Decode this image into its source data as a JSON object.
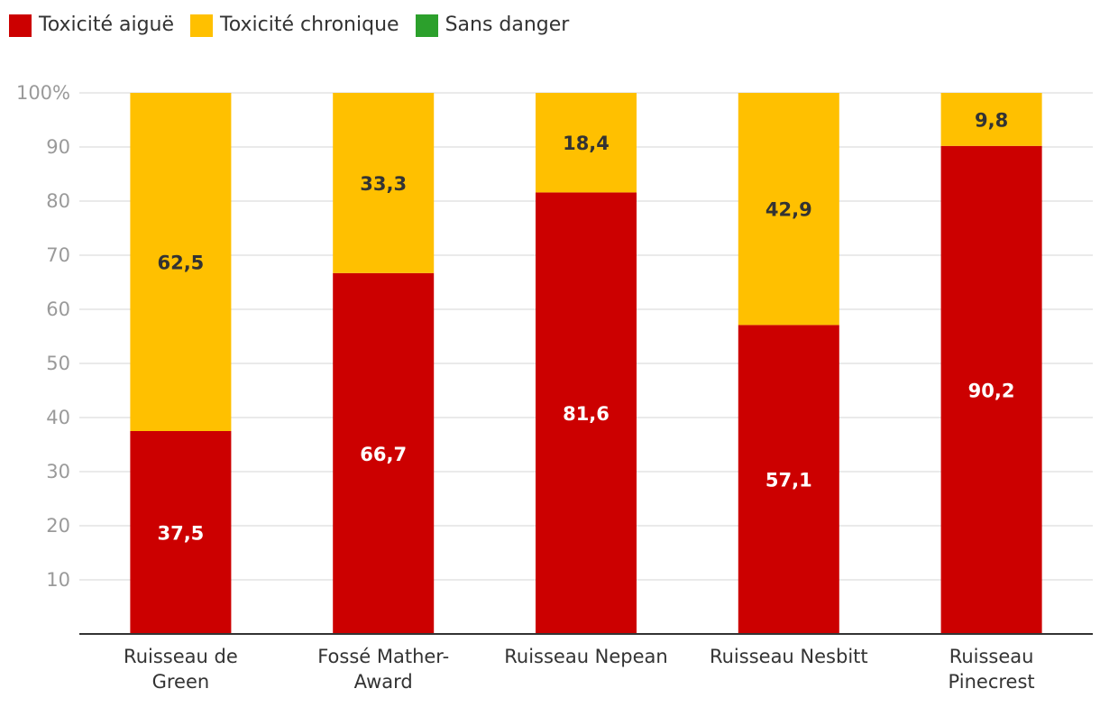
{
  "chart_data": {
    "type": "bar",
    "stacked": true,
    "title": "",
    "xlabel": "",
    "ylabel": "",
    "ylim": [
      0,
      100
    ],
    "yticks": [
      10,
      20,
      30,
      40,
      50,
      60,
      70,
      80,
      90,
      100
    ],
    "ytick_labels": [
      "10",
      "20",
      "30",
      "40",
      "50",
      "60",
      "70",
      "80",
      "90",
      "100%"
    ],
    "grid": true,
    "legend_position": "top-left",
    "categories": [
      [
        "Ruisseau de",
        "Green"
      ],
      [
        "Fossé Mather-",
        "Award"
      ],
      [
        "Ruisseau Nepean"
      ],
      [
        "Ruisseau Nesbitt"
      ],
      [
        "Ruisseau",
        "Pinecrest"
      ]
    ],
    "series": [
      {
        "name": "Toxicité aiguë",
        "color": "#cc0000",
        "values": [
          37.5,
          66.7,
          81.6,
          57.1,
          90.2
        ],
        "labels": [
          "37,5",
          "66,7",
          "81,6",
          "57,1",
          "90,2"
        ],
        "label_color": "#ffffff"
      },
      {
        "name": "Toxicité chronique",
        "color": "#ffc000",
        "values": [
          62.5,
          33.3,
          18.4,
          42.9,
          9.8
        ],
        "labels": [
          "62,5",
          "33,3",
          "18,4",
          "42,9",
          "9,8"
        ],
        "label_color": "#333333"
      },
      {
        "name": "Sans danger",
        "color": "#2ca02c",
        "values": [
          0,
          0,
          0,
          0,
          0
        ],
        "labels": [
          "",
          "",
          "",
          "",
          ""
        ],
        "label_color": "#333333"
      }
    ]
  }
}
